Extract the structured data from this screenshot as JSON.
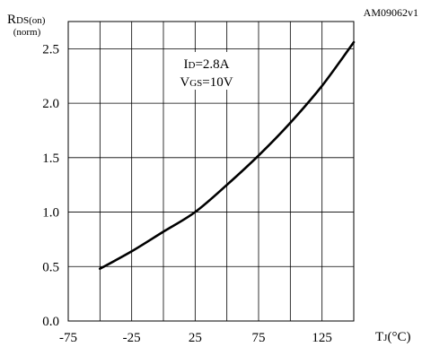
{
  "figure_id": "AM09062v1",
  "chart_data": {
    "type": "line",
    "ylabel_main": "R",
    "ylabel_sub": "DS(on)",
    "ylabel_unit": "(norm)",
    "xlabel_main": "T",
    "xlabel_sub": "J",
    "xlabel_unit": "(°C)",
    "xlim": [
      -75,
      150
    ],
    "ylim": [
      0,
      2.75
    ],
    "x_ticks": [
      -75,
      -25,
      25,
      75,
      125
    ],
    "x_tick_labels": [
      "-75",
      "-25",
      "25",
      "75",
      "125"
    ],
    "x_grid": [
      -75,
      -50,
      -25,
      0,
      25,
      50,
      75,
      100,
      125,
      150
    ],
    "y_ticks": [
      0,
      0.5,
      1.0,
      1.5,
      2.0,
      2.5
    ],
    "y_tick_labels": [
      "0.0",
      "0.5",
      "1.0",
      "1.5",
      "2.0",
      "2.5"
    ],
    "grid": true,
    "annotations": {
      "line1_main": "I",
      "line1_sub": "D",
      "line1_rest": "=2.8A",
      "line2_main": "V",
      "line2_sub": "GS",
      "line2_rest": "=10V"
    },
    "series": [
      {
        "x": [
          -50,
          -25,
          0,
          25,
          50,
          75,
          100,
          125,
          150
        ],
        "values": [
          0.48,
          0.64,
          0.82,
          1.0,
          1.25,
          1.52,
          1.82,
          2.16,
          2.56
        ]
      }
    ]
  }
}
